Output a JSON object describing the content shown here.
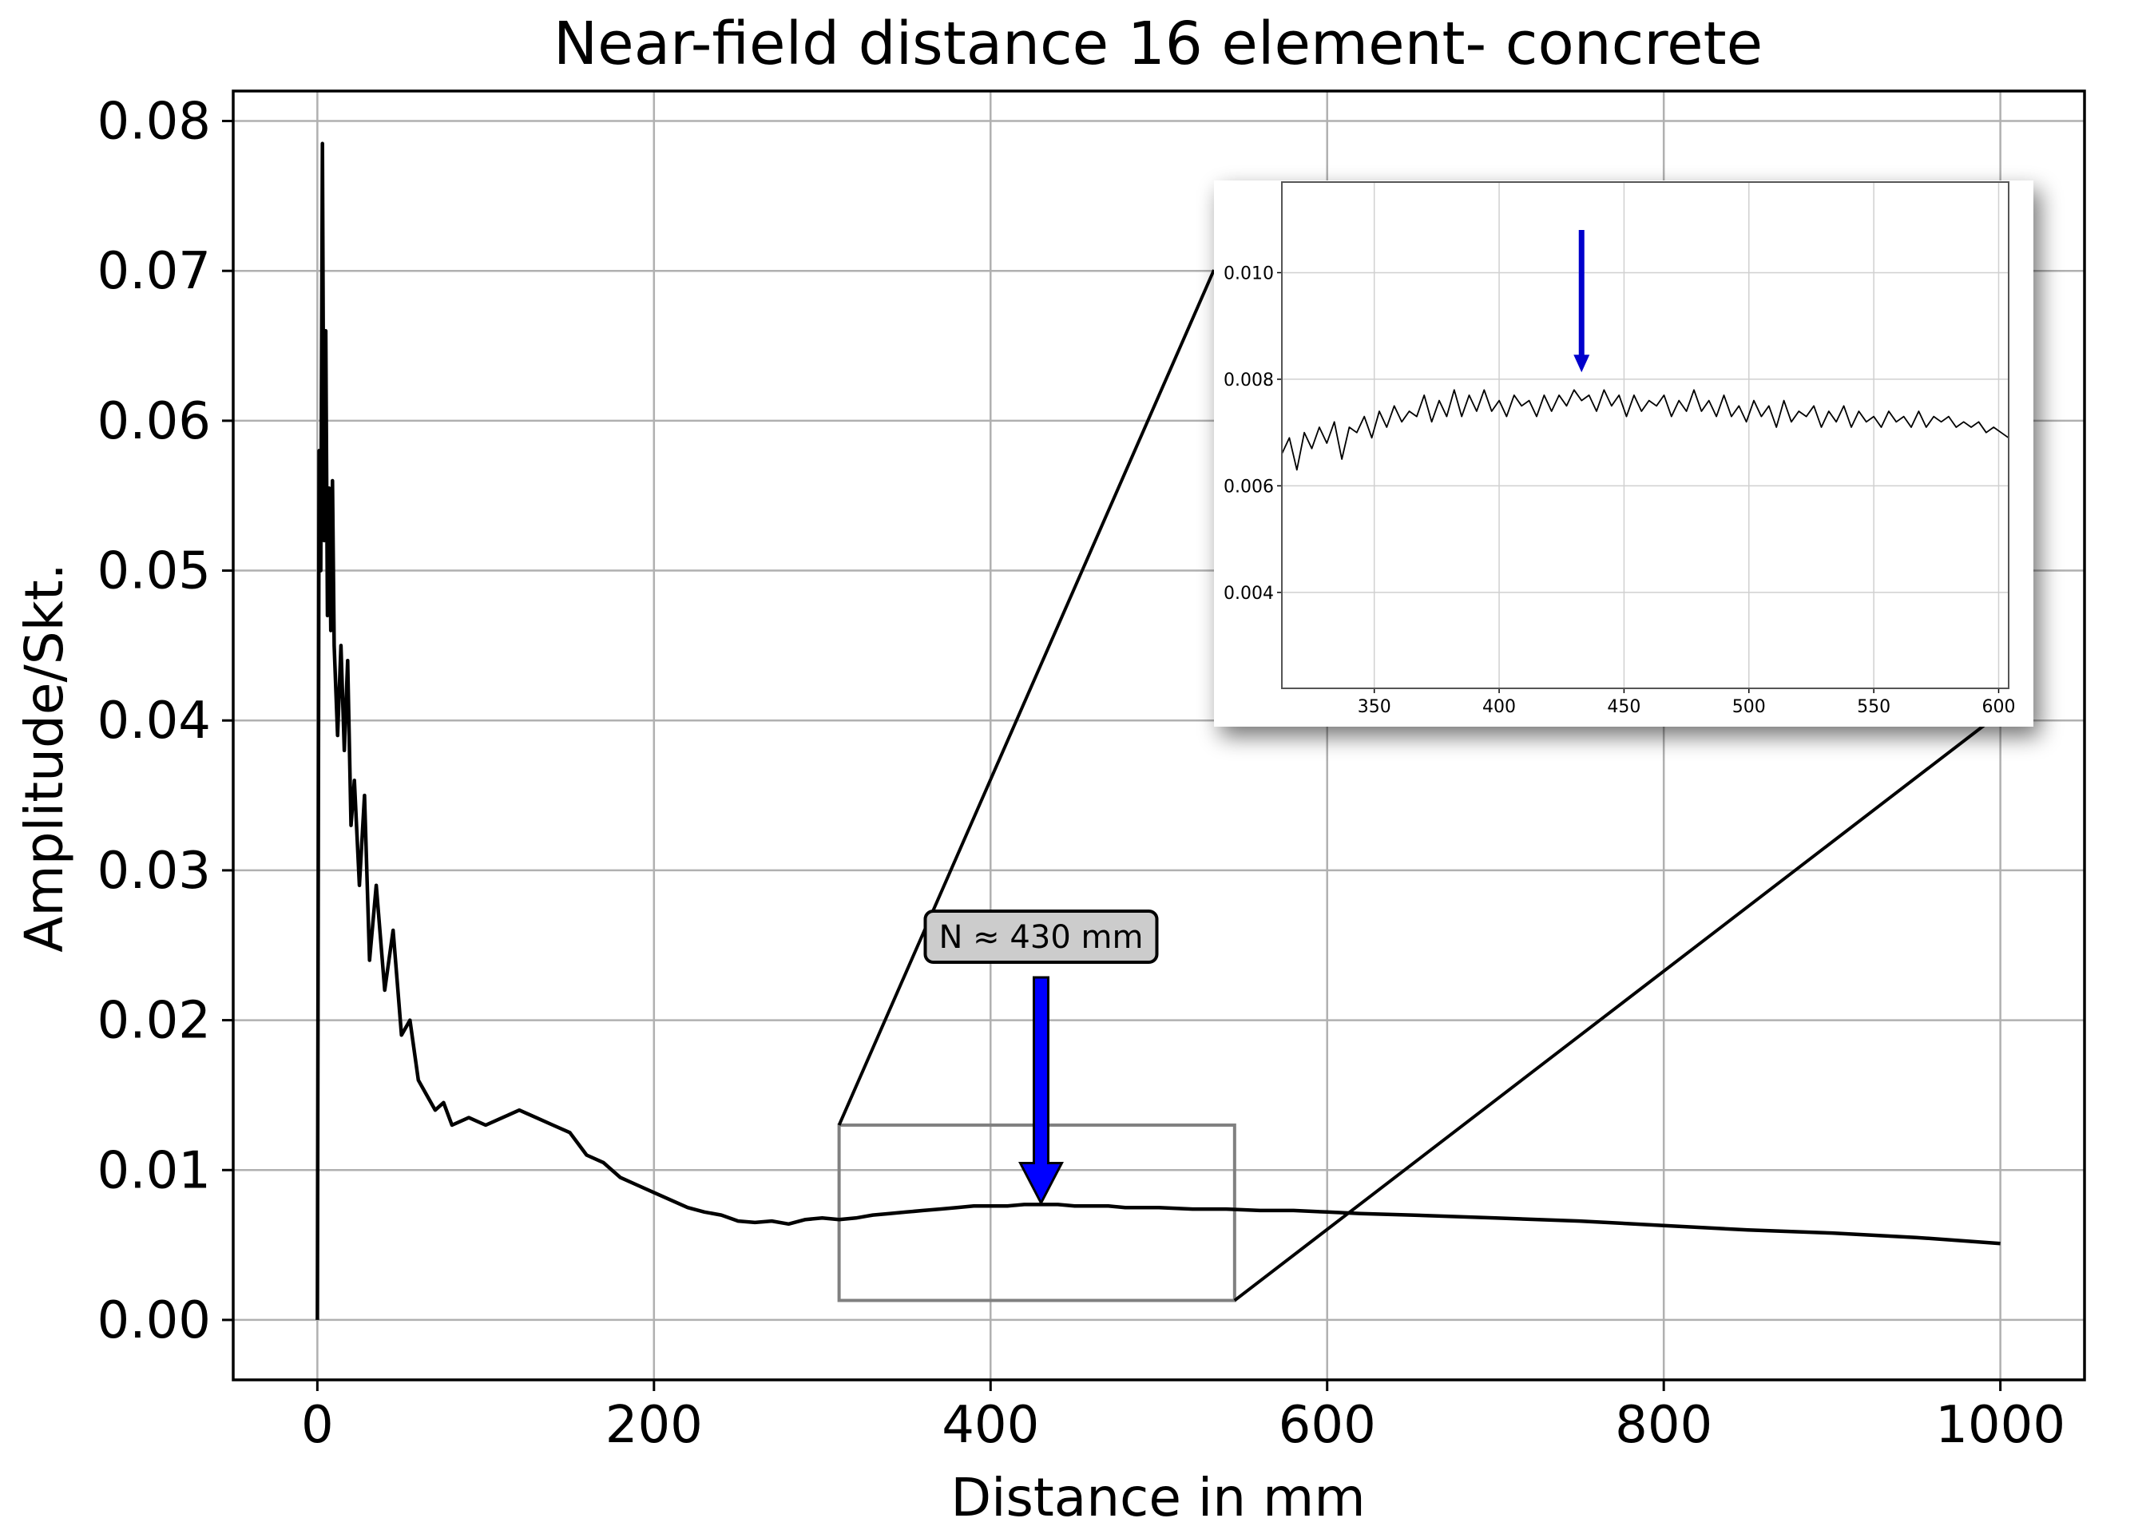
{
  "chart_data": [
    {
      "type": "line",
      "title": "Near-field distance 16 element- concrete",
      "xlabel": "Distance in mm",
      "ylabel": "Amplitude/Skt.",
      "xlim": [
        -50,
        1050
      ],
      "ylim": [
        -0.004,
        0.082
      ],
      "xticks": [
        0,
        200,
        400,
        600,
        800,
        1000
      ],
      "yticks": [
        0.0,
        0.01,
        0.02,
        0.03,
        0.04,
        0.05,
        0.06,
        0.07,
        0.08
      ],
      "xtick_labels": [
        "0",
        "200",
        "400",
        "600",
        "800",
        "1000"
      ],
      "ytick_labels": [
        "0.00",
        "0.01",
        "0.02",
        "0.03",
        "0.04",
        "0.05",
        "0.06",
        "0.07",
        "0.08"
      ],
      "grid": true,
      "series": [
        {
          "color": "#000000",
          "x": [
            0,
            1,
            2,
            3,
            4,
            5,
            6,
            7,
            8,
            9,
            10,
            12,
            14,
            16,
            18,
            20,
            22,
            25,
            28,
            31,
            35,
            40,
            45,
            50,
            55,
            60,
            65,
            70,
            75,
            80,
            90,
            100,
            110,
            120,
            130,
            140,
            150,
            160,
            170,
            180,
            190,
            200,
            210,
            220,
            230,
            240,
            250,
            260,
            270,
            280,
            290,
            300,
            310,
            320,
            330,
            340,
            350,
            360,
            370,
            380,
            390,
            400,
            410,
            420,
            430,
            440,
            450,
            460,
            470,
            480,
            490,
            500,
            520,
            540,
            560,
            580,
            600,
            620,
            650,
            700,
            750,
            800,
            850,
            900,
            950,
            1000
          ],
          "y": [
            0.0,
            0.058,
            0.05,
            0.0785,
            0.052,
            0.066,
            0.047,
            0.0555,
            0.046,
            0.056,
            0.045,
            0.039,
            0.045,
            0.038,
            0.044,
            0.033,
            0.036,
            0.029,
            0.035,
            0.024,
            0.029,
            0.022,
            0.026,
            0.019,
            0.02,
            0.016,
            0.015,
            0.014,
            0.0145,
            0.013,
            0.0135,
            0.013,
            0.0135,
            0.014,
            0.0135,
            0.013,
            0.0125,
            0.011,
            0.0105,
            0.0095,
            0.009,
            0.0085,
            0.008,
            0.0075,
            0.0072,
            0.007,
            0.0066,
            0.0065,
            0.0066,
            0.0064,
            0.0067,
            0.0068,
            0.0067,
            0.0068,
            0.007,
            0.0071,
            0.0072,
            0.0073,
            0.0074,
            0.0075,
            0.0076,
            0.0076,
            0.0076,
            0.0077,
            0.0077,
            0.0077,
            0.0076,
            0.0076,
            0.0076,
            0.0075,
            0.0075,
            0.0075,
            0.0074,
            0.0074,
            0.0073,
            0.0073,
            0.0072,
            0.0071,
            0.007,
            0.0068,
            0.0066,
            0.0063,
            0.006,
            0.0058,
            0.0055,
            0.0051
          ]
        }
      ],
      "zoom_box": {
        "x": [
          310,
          545
        ],
        "y": [
          0.0013,
          0.013
        ]
      },
      "annotation": {
        "text": "N ≈ 430 mm",
        "x": 430,
        "y": 0.0078,
        "arrow_color": "#0000ff"
      }
    },
    {
      "type": "line",
      "xlim": [
        313,
        604
      ],
      "ylim": [
        0.0022,
        0.0117
      ],
      "xticks": [
        350,
        400,
        450,
        500,
        550,
        600
      ],
      "yticks": [
        0.004,
        0.006,
        0.008,
        0.01
      ],
      "xtick_labels": [
        "350",
        "400",
        "450",
        "500",
        "550",
        "600"
      ],
      "ytick_labels": [
        "0.004",
        "0.006",
        "0.008",
        "0.010"
      ],
      "grid": true,
      "series": [
        {
          "color": "#000000",
          "x": [
            313,
            316,
            319,
            322,
            325,
            328,
            331,
            334,
            337,
            340,
            343,
            346,
            349,
            352,
            355,
            358,
            361,
            364,
            367,
            370,
            373,
            376,
            379,
            382,
            385,
            388,
            391,
            394,
            397,
            400,
            403,
            406,
            409,
            412,
            415,
            418,
            421,
            424,
            427,
            430,
            433,
            436,
            439,
            442,
            445,
            448,
            451,
            454,
            457,
            460,
            463,
            466,
            469,
            472,
            475,
            478,
            481,
            484,
            487,
            490,
            493,
            496,
            499,
            502,
            505,
            508,
            511,
            514,
            517,
            520,
            523,
            526,
            529,
            532,
            535,
            538,
            541,
            544,
            547,
            550,
            553,
            556,
            559,
            562,
            565,
            568,
            571,
            574,
            577,
            580,
            583,
            586,
            589,
            592,
            595,
            598,
            601,
            604
          ],
          "y": [
            0.0066,
            0.0069,
            0.0063,
            0.007,
            0.0067,
            0.0071,
            0.0068,
            0.0072,
            0.0065,
            0.0071,
            0.007,
            0.0073,
            0.0069,
            0.0074,
            0.0071,
            0.0075,
            0.0072,
            0.0074,
            0.0073,
            0.0077,
            0.0072,
            0.0076,
            0.0073,
            0.0078,
            0.0073,
            0.0077,
            0.0074,
            0.0078,
            0.0074,
            0.0076,
            0.0073,
            0.0077,
            0.0075,
            0.0076,
            0.0073,
            0.0077,
            0.0074,
            0.0077,
            0.0075,
            0.0078,
            0.0076,
            0.0077,
            0.0074,
            0.0078,
            0.0075,
            0.0077,
            0.0073,
            0.0077,
            0.0074,
            0.0076,
            0.0075,
            0.0077,
            0.0073,
            0.0076,
            0.0074,
            0.0078,
            0.0074,
            0.0076,
            0.0073,
            0.0077,
            0.0073,
            0.0075,
            0.0072,
            0.0076,
            0.0073,
            0.0075,
            0.0071,
            0.0076,
            0.0072,
            0.0074,
            0.0073,
            0.0075,
            0.0071,
            0.0074,
            0.0072,
            0.0075,
            0.0071,
            0.0074,
            0.0072,
            0.0073,
            0.0071,
            0.0074,
            0.0072,
            0.0073,
            0.0071,
            0.0074,
            0.0071,
            0.0073,
            0.0072,
            0.0073,
            0.0071,
            0.0072,
            0.0071,
            0.0072,
            0.007,
            0.0071,
            0.007,
            0.0069
          ]
        }
      ],
      "annotation": {
        "x": 433,
        "y": 0.0078,
        "arrow_color": "#0000cc"
      }
    }
  ]
}
